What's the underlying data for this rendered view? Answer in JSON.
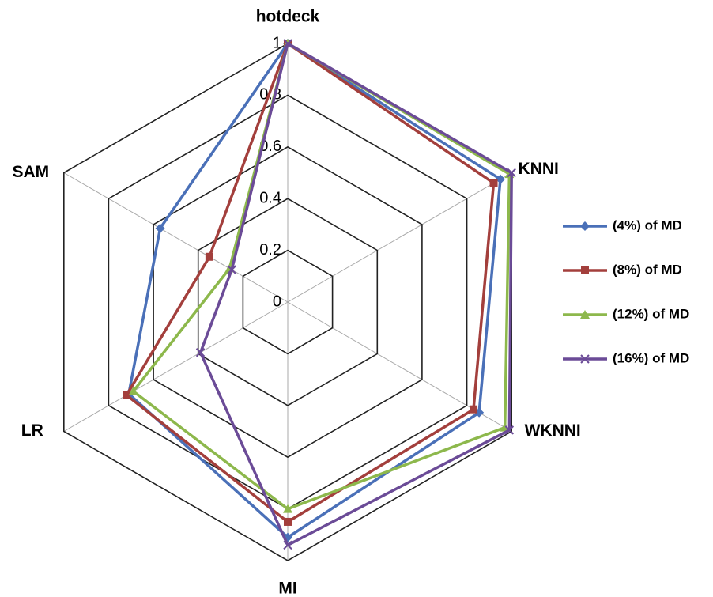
{
  "chart_data": {
    "type": "radar",
    "categories": [
      "hotdeck",
      "KNNI",
      "WKNNI",
      "MI",
      "LR",
      "SAM"
    ],
    "ylim": [
      0,
      1
    ],
    "yticks": [
      0,
      0.2,
      0.4,
      0.6,
      0.8,
      1
    ],
    "series": [
      {
        "name": "(4%) of MD",
        "color": "#4a70b8",
        "marker": "diamond",
        "values": [
          1,
          0.95,
          0.855,
          0.91,
          0.71,
          0.57
        ]
      },
      {
        "name": "(8%) of MD",
        "color": "#a33f3c",
        "marker": "square",
        "values": [
          1,
          0.92,
          0.83,
          0.85,
          0.72,
          0.35
        ]
      },
      {
        "name": "(12%) of MD",
        "color": "#8db84c",
        "marker": "triangle",
        "values": [
          1,
          0.99,
          0.97,
          0.8,
          0.69,
          0.26
        ]
      },
      {
        "name": "(16%) of MD",
        "color": "#6b4b97",
        "marker": "x",
        "values": [
          1,
          1,
          0.99,
          0.94,
          0.39,
          0.25
        ]
      }
    ]
  }
}
